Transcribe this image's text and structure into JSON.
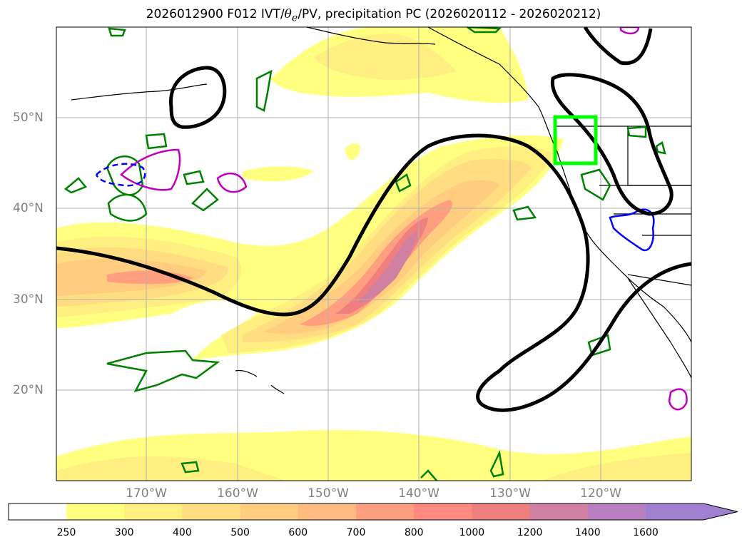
{
  "title": {
    "prefix": "2026012900 F012 IVT/",
    "theta": "θ",
    "theta_sub": "e",
    "suffix": "/PV, precipitation PC (2026020112 - 2026020212)"
  },
  "map": {
    "lat_labels": [
      "50°N",
      "40°N",
      "30°N",
      "20°N"
    ],
    "lon_labels": [
      "170°W",
      "160°W",
      "150°W",
      "140°W",
      "130°W",
      "120°W"
    ],
    "highlight_box_color": "#00ff00"
  },
  "colorbar": {
    "ticks": [
      "250",
      "300",
      "400",
      "500",
      "600",
      "700",
      "800",
      "1000",
      "1200",
      "1400",
      "1600"
    ],
    "colors": [
      "#ffff80",
      "#ffee80",
      "#ffdd80",
      "#ffcc80",
      "#ffbb80",
      "#ff9f80",
      "#ff8a80",
      "#f08080",
      "#d080a0",
      "#b880c0",
      "#a080d0"
    ]
  },
  "colors": {
    "ivt_contour": "#000000",
    "theta_contour_green": "#008000",
    "pv_contour_magenta": "#c000c0",
    "precip_contour_blue": "#0000ff",
    "grid": "#b0b0b0",
    "coastline": "#000000"
  }
}
